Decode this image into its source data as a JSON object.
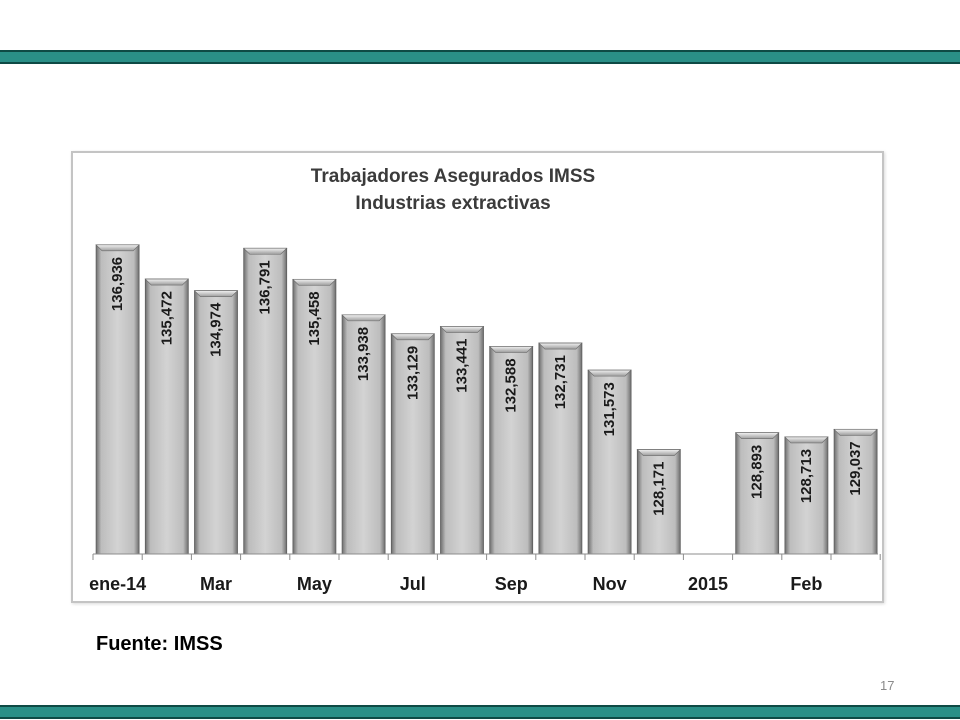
{
  "page": {
    "source": "Fuente: IMSS",
    "page_number": "17"
  },
  "colors": {
    "band": "#2a8f87",
    "band_edge": "#0e4a45",
    "bar_light": "#d9d9d9",
    "bar_dark": "#7f7f7f"
  },
  "chart_data": {
    "type": "bar",
    "title": "Trabajadores Asegurados IMSS",
    "subtitle": "Industrias extractivas",
    "categories": [
      "ene-14",
      "",
      "Mar",
      "",
      "May",
      "",
      "Jul",
      "",
      "Sep",
      "",
      "Nov",
      "",
      "2015",
      "",
      "Feb",
      ""
    ],
    "values": [
      136936,
      135472,
      134974,
      136791,
      135458,
      133938,
      133129,
      133441,
      132588,
      132731,
      131573,
      128171,
      null,
      128893,
      128713,
      129037
    ],
    "value_labels": [
      "136,936",
      "135,472",
      "134,974",
      "136,791",
      "135,458",
      "133,938",
      "133,129",
      "133,441",
      "132,588",
      "132,731",
      "131,573",
      "128,171",
      "",
      "128,893",
      "128,713",
      "129,037"
    ],
    "ylim": [
      123700,
      138000
    ],
    "xlabel": "",
    "ylabel": "",
    "grid": false,
    "legend": "none"
  }
}
